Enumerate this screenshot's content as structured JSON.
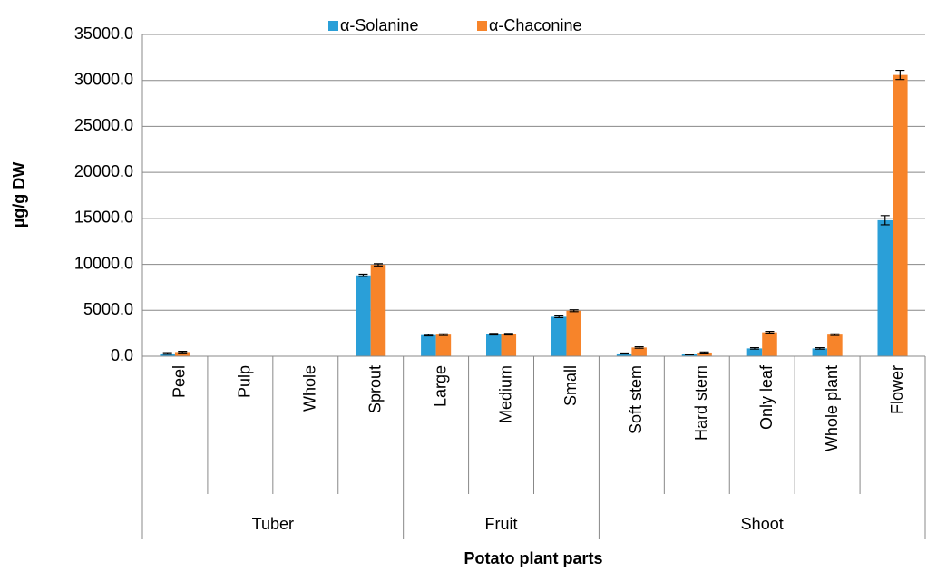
{
  "chart_data": {
    "type": "bar",
    "x_label": "Potato plant parts",
    "y_label": "µg/g DW",
    "groups": [
      {
        "name": "Tuber",
        "categories": [
          "Peel",
          "Pulp",
          "Whole",
          "Sprout"
        ]
      },
      {
        "name": "Fruit",
        "categories": [
          "Large",
          "Medium",
          "Small"
        ]
      },
      {
        "name": "Shoot",
        "categories": [
          "Soft stem",
          "Hard stem",
          "Only leaf",
          "Whole plant",
          "Flower"
        ]
      }
    ],
    "series": [
      {
        "name": "α-Solanine",
        "color": "#2a9fd8",
        "values": [
          300,
          0,
          0,
          8800,
          2300,
          2400,
          4300,
          300,
          200,
          850,
          850,
          14800
        ],
        "errors": [
          80,
          0,
          0,
          120,
          80,
          80,
          100,
          50,
          40,
          80,
          80,
          500
        ]
      },
      {
        "name": "α-Chaconine",
        "color": "#f7842a",
        "values": [
          450,
          0,
          0,
          9950,
          2350,
          2400,
          4950,
          950,
          400,
          2600,
          2350,
          30600
        ],
        "errors": [
          80,
          0,
          0,
          120,
          80,
          80,
          100,
          80,
          60,
          100,
          80,
          500
        ]
      }
    ],
    "ylim": [
      0,
      35000
    ],
    "yticks": [
      {
        "value": 0,
        "label": "0.0"
      },
      {
        "value": 5000,
        "label": "5000.0"
      },
      {
        "value": 10000,
        "label": "10000.0"
      },
      {
        "value": 15000,
        "label": "15000.0"
      },
      {
        "value": 20000,
        "label": "20000.0"
      },
      {
        "value": 25000,
        "label": "25000.0"
      },
      {
        "value": 30000,
        "label": "30000.0"
      },
      {
        "value": 35000,
        "label": "35000.0"
      }
    ],
    "grid": true,
    "legend": "top"
  }
}
